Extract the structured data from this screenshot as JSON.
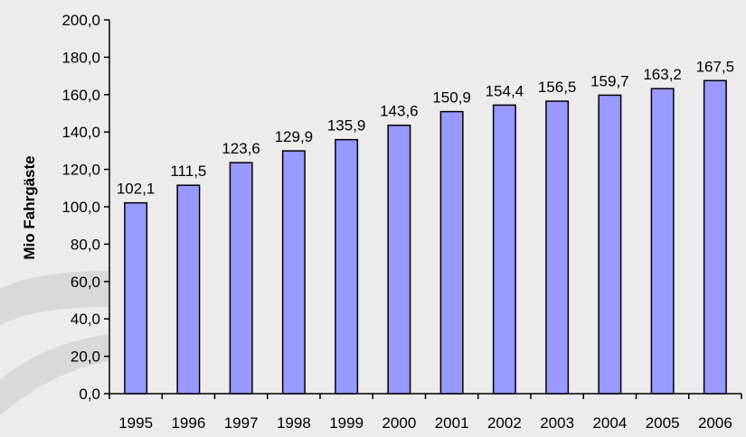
{
  "chart_data": {
    "type": "bar",
    "title": "",
    "xlabel": "",
    "ylabel": "Mio Fahrgäste",
    "categories": [
      "1995",
      "1996",
      "1997",
      "1998",
      "1999",
      "2000",
      "2001",
      "2002",
      "2003",
      "2004",
      "2005",
      "2006"
    ],
    "values": [
      102.1,
      111.5,
      123.6,
      129.9,
      135.9,
      143.6,
      150.9,
      154.4,
      156.5,
      159.7,
      163.2,
      167.5
    ],
    "value_labels": [
      "102,1",
      "111,5",
      "123,6",
      "129,9",
      "135,9",
      "143,6",
      "150,9",
      "154,4",
      "156,5",
      "159,7",
      "163,2",
      "167,5"
    ],
    "y_ticks": [
      0,
      20,
      40,
      60,
      80,
      100,
      120,
      140,
      160,
      180,
      200
    ],
    "y_tick_labels": [
      "0,0",
      "20,0",
      "40,0",
      "60,0",
      "80,0",
      "100,0",
      "120,0",
      "140,0",
      "160,0",
      "180,0",
      "200,0"
    ],
    "ylim": [
      0,
      200
    ],
    "grid": false,
    "legend": "none",
    "colors": {
      "bar_fill": "#9999ff",
      "bar_stroke": "#000000",
      "background": "#ececec",
      "watermark": "#d6d6d6"
    }
  }
}
